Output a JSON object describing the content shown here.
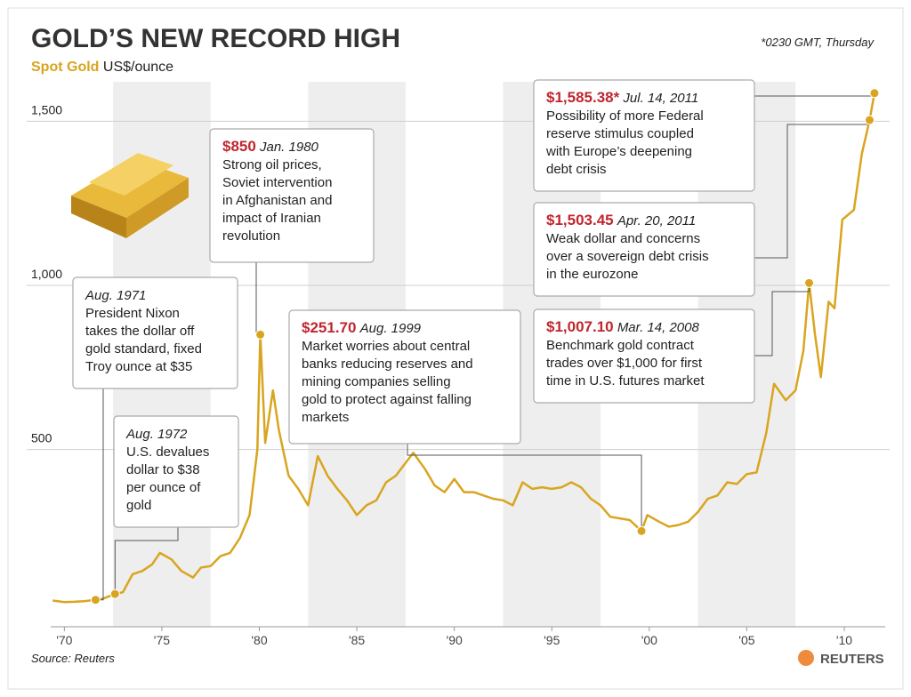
{
  "chart_data": {
    "type": "line",
    "title": "GOLD’S NEW RECORD HIGH",
    "subtitle": "Spot Gold",
    "y_label": "US$/ounce",
    "note": "*0230 GMT, Thursday",
    "source": "Source: Reuters",
    "brand": "REUTERS",
    "x": [
      1969.4,
      1970.0,
      1970.5,
      1971.0,
      1971.6,
      1972.0,
      1972.6,
      1973.0,
      1973.5,
      1974.0,
      1974.5,
      1974.9,
      1975.5,
      1976.0,
      1976.6,
      1977.0,
      1977.5,
      1978.0,
      1978.5,
      1979.0,
      1979.5,
      1979.9,
      1980.05,
      1980.3,
      1980.7,
      1981.0,
      1981.5,
      1982.0,
      1982.5,
      1983.0,
      1983.5,
      1984.0,
      1984.5,
      1985.0,
      1985.5,
      1986.0,
      1986.5,
      1987.0,
      1987.9,
      1988.5,
      1989.0,
      1989.5,
      1990.0,
      1990.5,
      1991.0,
      1991.5,
      1992.0,
      1992.5,
      1993.0,
      1993.5,
      1994.0,
      1994.5,
      1995.0,
      1995.5,
      1996.0,
      1996.5,
      1997.0,
      1997.5,
      1998.0,
      1998.5,
      1999.0,
      1999.6,
      1999.9,
      2000.5,
      2001.0,
      2001.5,
      2002.0,
      2002.5,
      2003.0,
      2003.5,
      2004.0,
      2004.5,
      2005.0,
      2005.5,
      2006.0,
      2006.4,
      2007.0,
      2007.5,
      2007.9,
      2008.2,
      2008.5,
      2008.8,
      2009.2,
      2009.5,
      2009.9,
      2010.5,
      2010.9,
      2011.3,
      2011.55
    ],
    "series": [
      {
        "name": "Spot Gold",
        "color": "#d9a520",
        "values": [
          40,
          35,
          36,
          38,
          42,
          46,
          60,
          65,
          120,
          130,
          150,
          185,
          165,
          130,
          110,
          140,
          145,
          175,
          185,
          230,
          300,
          500,
          850,
          520,
          680,
          560,
          420,
          380,
          330,
          480,
          420,
          380,
          345,
          300,
          330,
          345,
          400,
          420,
          490,
          440,
          390,
          370,
          410,
          370,
          370,
          360,
          350,
          345,
          330,
          400,
          380,
          385,
          380,
          385,
          400,
          385,
          350,
          330,
          295,
          290,
          285,
          251.7,
          300,
          280,
          265,
          270,
          280,
          310,
          350,
          360,
          400,
          395,
          425,
          430,
          550,
          700,
          650,
          680,
          800,
          1007.1,
          850,
          720,
          950,
          930,
          1200,
          1230,
          1400,
          1503.45,
          1585.38
        ]
      }
    ],
    "xlim": [
      1969.3,
      2012.1
    ],
    "ylim": [
      -40,
      1620
    ],
    "xticks": [
      {
        "value": 1970,
        "label": "'70"
      },
      {
        "value": 1975,
        "label": "'75"
      },
      {
        "value": 1980,
        "label": "'80"
      },
      {
        "value": 1985,
        "label": "'85"
      },
      {
        "value": 1990,
        "label": "'90"
      },
      {
        "value": 1995,
        "label": "'95"
      },
      {
        "value": 2000,
        "label": "'00"
      },
      {
        "value": 2005,
        "label": "'05"
      },
      {
        "value": 2010,
        "label": "'10"
      }
    ],
    "yticks": [
      500,
      {
        "value": 1000,
        "label": "1,000"
      },
      {
        "value": 1500,
        "label": "1,500"
      }
    ],
    "grid": true,
    "annotations": [
      {
        "x": 1971.6,
        "y": 42,
        "date": "Aug. 1971",
        "text": [
          "President Nixon",
          "takes the dollar off",
          "gold standard, fixed",
          "Troy ounce at $35"
        ]
      },
      {
        "x": 1972.6,
        "y": 60,
        "date": "Aug. 1972",
        "text": [
          "U.S. devalues",
          "dollar to $38",
          "per ounce of",
          "gold"
        ]
      },
      {
        "x": 1980.05,
        "y": 850,
        "label": "$850",
        "date": "Jan. 1980",
        "text": [
          "Strong oil prices,",
          "Soviet intervention",
          "in Afghanistan and",
          "impact of Iranian",
          "revolution"
        ]
      },
      {
        "x": 1999.6,
        "y": 251.7,
        "label": "$251.70",
        "date": "Aug. 1999",
        "text": [
          "Market worries about central",
          "banks reducing reserves and",
          "mining companies selling",
          "gold to protect against falling",
          "markets"
        ]
      },
      {
        "x": 2011.55,
        "y": 1585.38,
        "label": "$1,585.38*",
        "date": "Jul. 14, 2011",
        "text": [
          "Possibility of more Federal",
          "reserve stimulus coupled",
          "with Europe’s deepening",
          "debt crisis"
        ]
      },
      {
        "x": 2011.3,
        "y": 1503.45,
        "label": "$1,503.45",
        "date": "Apr. 20, 2011",
        "text": [
          "Weak dollar and concerns",
          "over a sovereign debt crisis",
          "in the eurozone"
        ]
      },
      {
        "x": 2008.2,
        "y": 1007.1,
        "label": "$1,007.10",
        "date": "Mar. 14, 2008",
        "text": [
          "Benchmark gold contract",
          "trades over $1,000 for first",
          "time in U.S. futures market"
        ]
      }
    ]
  }
}
